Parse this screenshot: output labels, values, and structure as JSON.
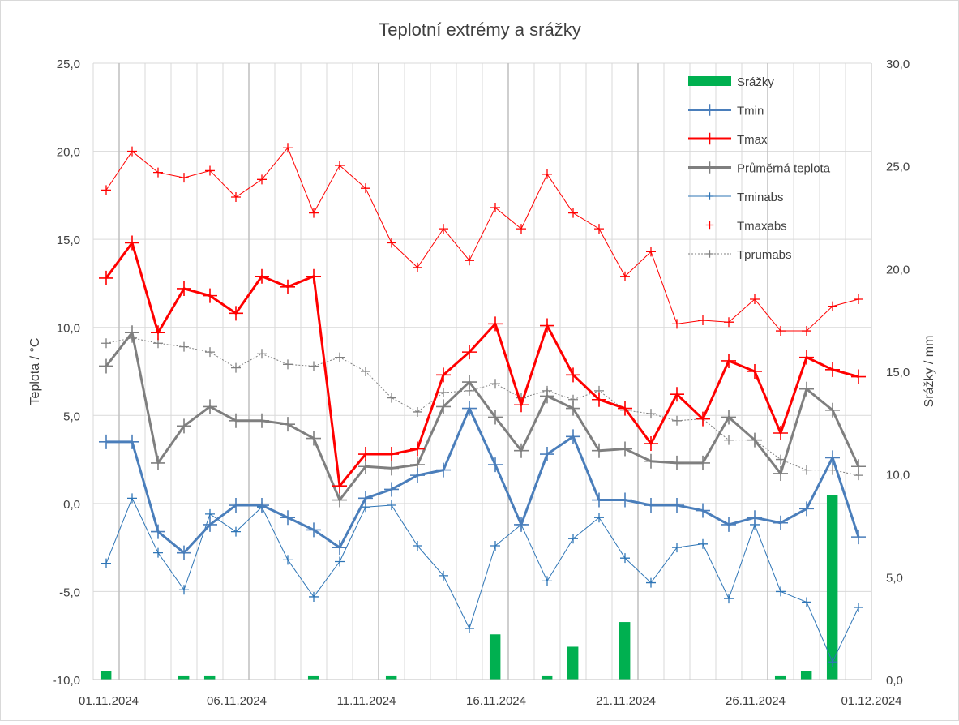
{
  "chart_data": {
    "type": "line",
    "title": "Teplotní extrémy a srážky",
    "ylabel": "Teplota / °C",
    "y2label": "Srážky / mm",
    "ylim": [
      -10,
      25
    ],
    "y2lim": [
      0,
      30
    ],
    "yticks": [
      "-10,0",
      "-5,0",
      "0,0",
      "5,0",
      "10,0",
      "15,0",
      "20,0",
      "25,0"
    ],
    "y2ticks": [
      "0,0",
      "5,0",
      "10,0",
      "15,0",
      "20,0",
      "25,0",
      "30,0"
    ],
    "xtick_labels": [
      "01.11.2024",
      "06.11.2024",
      "11.11.2024",
      "16.11.2024",
      "21.11.2024",
      "26.11.2024",
      "01.12.2024"
    ],
    "grid": true,
    "legend_position": "top-right",
    "colors": {
      "srazky": "#00b050",
      "tmin": "#4a7ebb",
      "tmax": "#ff0000",
      "prumer": "#7f7f7f",
      "tminabs": "#2e75b6",
      "tmaxabs": "#ff0000",
      "tprumabs": "#808080",
      "grid": "#d9d9d9",
      "text": "#404040"
    },
    "dates": [
      "01.11.2024",
      "02.11.2024",
      "03.11.2024",
      "04.11.2024",
      "05.11.2024",
      "06.11.2024",
      "07.11.2024",
      "08.11.2024",
      "09.11.2024",
      "10.11.2024",
      "11.11.2024",
      "12.11.2024",
      "13.11.2024",
      "14.11.2024",
      "15.11.2024",
      "16.11.2024",
      "17.11.2024",
      "18.11.2024",
      "19.11.2024",
      "20.11.2024",
      "21.11.2024",
      "22.11.2024",
      "23.11.2024",
      "24.11.2024",
      "25.11.2024",
      "26.11.2024",
      "27.11.2024",
      "28.11.2024",
      "29.11.2024",
      "30.11.2024"
    ],
    "series": [
      {
        "name": "Srážky",
        "kind": "bar",
        "axis": "right",
        "values": [
          0.4,
          0,
          0,
          0.2,
          0.2,
          0,
          0,
          0,
          0.2,
          0,
          0,
          0.2,
          0,
          0,
          0,
          2.2,
          0,
          0.2,
          1.6,
          0,
          2.8,
          0,
          0,
          0,
          0,
          0,
          0.2,
          0.4,
          9.0,
          0
        ]
      },
      {
        "name": "Tmin",
        "kind": "line",
        "axis": "left",
        "values": [
          3.5,
          3.5,
          -1.6,
          -2.8,
          -1.2,
          -0.1,
          -0.1,
          -0.8,
          -1.5,
          -2.5,
          0.3,
          0.8,
          1.6,
          1.9,
          5.4,
          2.2,
          -1.2,
          2.8,
          3.8,
          0.2,
          0.2,
          -0.1,
          -0.1,
          -0.4,
          -1.2,
          -0.8,
          -1.1,
          -0.3,
          2.6,
          -1.9
        ]
      },
      {
        "name": "Tmax",
        "kind": "line",
        "axis": "left",
        "values": [
          12.8,
          14.8,
          9.7,
          12.2,
          11.8,
          10.8,
          12.9,
          12.3,
          12.9,
          1.0,
          2.8,
          2.8,
          3.1,
          7.3,
          8.6,
          10.2,
          5.6,
          10.1,
          7.3,
          5.9,
          5.4,
          3.4,
          6.2,
          4.8,
          8.1,
          7.5,
          4.0,
          8.3,
          7.6,
          7.2
        ]
      },
      {
        "name": "Průměrná teplota",
        "kind": "line",
        "axis": "left",
        "values": [
          7.8,
          9.7,
          2.3,
          4.4,
          5.5,
          4.7,
          4.7,
          4.5,
          3.7,
          0.2,
          2.1,
          2.0,
          2.2,
          5.5,
          6.9,
          4.9,
          3.0,
          6.1,
          5.4,
          3.0,
          3.1,
          2.4,
          2.3,
          2.3,
          4.9,
          3.6,
          1.7,
          6.5,
          5.3,
          2.1
        ]
      },
      {
        "name": "Tminabs",
        "kind": "line",
        "axis": "left",
        "values": [
          -3.4,
          0.3,
          -2.8,
          -4.9,
          -0.6,
          -1.6,
          -0.2,
          -3.2,
          -5.3,
          -3.3,
          -0.2,
          -0.1,
          -2.4,
          -4.1,
          -7.1,
          -2.4,
          -1.2,
          -4.4,
          -2.0,
          -0.8,
          -3.1,
          -4.5,
          -2.5,
          -2.3,
          -5.4,
          -1.2,
          -5.0,
          -5.6,
          -9.0,
          -5.9
        ]
      },
      {
        "name": "Tmaxabs",
        "kind": "line",
        "axis": "left",
        "values": [
          17.8,
          20.0,
          18.8,
          18.5,
          18.9,
          17.4,
          18.4,
          20.2,
          16.5,
          19.2,
          17.9,
          14.8,
          13.4,
          15.6,
          13.8,
          16.8,
          15.6,
          18.7,
          16.5,
          15.6,
          12.9,
          14.3,
          10.2,
          10.4,
          10.3,
          11.6,
          9.8,
          9.8,
          11.2,
          11.6
        ]
      },
      {
        "name": "Tprumabs",
        "kind": "line",
        "axis": "left",
        "values": [
          9.1,
          9.4,
          9.1,
          8.9,
          8.6,
          7.7,
          8.5,
          7.9,
          7.8,
          8.3,
          7.5,
          6.0,
          5.2,
          6.3,
          6.4,
          6.8,
          6.0,
          6.4,
          5.9,
          6.4,
          5.3,
          5.1,
          4.7,
          4.8,
          3.6,
          3.6,
          2.5,
          1.9,
          1.9,
          1.6
        ]
      }
    ]
  }
}
